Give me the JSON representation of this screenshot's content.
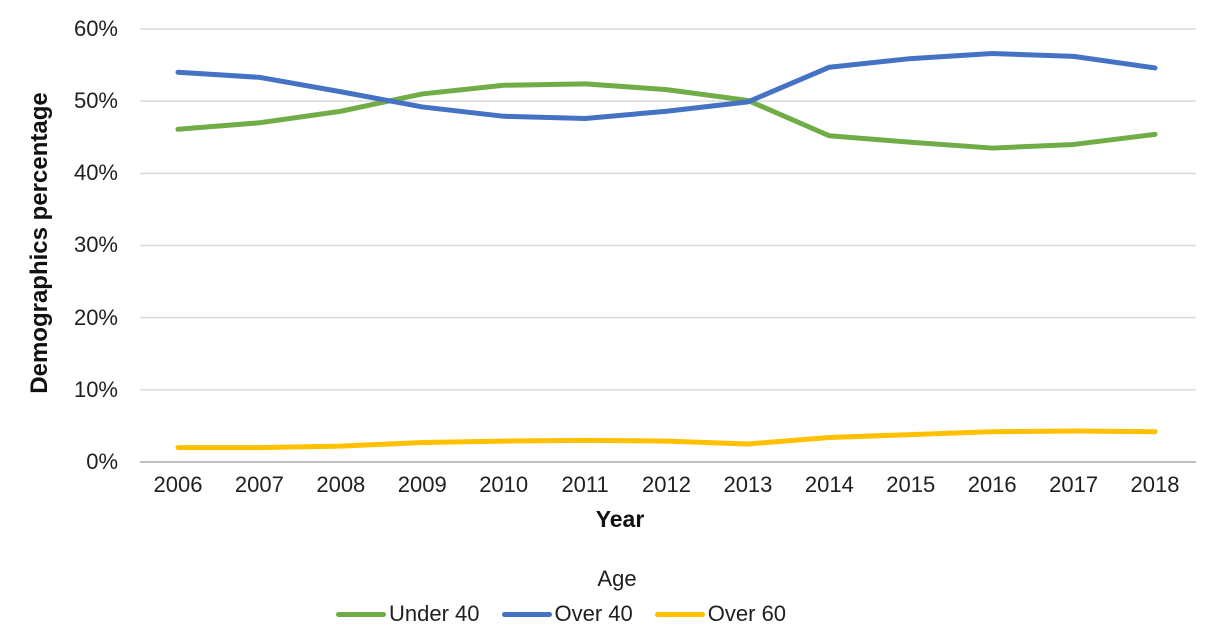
{
  "chart_data": {
    "type": "line",
    "x": [
      2006,
      2007,
      2008,
      2009,
      2010,
      2011,
      2012,
      2013,
      2014,
      2015,
      2016,
      2017,
      2018
    ],
    "series": [
      {
        "name": "Under 40",
        "color": "#70AD47",
        "values": [
          46.1,
          47.0,
          48.6,
          51.0,
          52.2,
          52.4,
          51.6,
          50.1,
          45.2,
          44.3,
          43.5,
          44.0,
          45.4
        ]
      },
      {
        "name": "Over 40",
        "color": "#4472C4",
        "values": [
          54.0,
          53.3,
          51.3,
          49.2,
          47.9,
          47.6,
          48.6,
          49.9,
          54.7,
          55.9,
          56.6,
          56.2,
          54.6
        ]
      },
      {
        "name": "Over 60",
        "color": "#FFC000",
        "values": [
          2.0,
          2.0,
          2.2,
          2.7,
          2.9,
          3.0,
          2.9,
          2.5,
          3.4,
          3.8,
          4.2,
          4.3,
          4.2
        ]
      }
    ],
    "title": "",
    "xlabel": "Year",
    "ylabel": "Demographics percentage",
    "legend_title": "Age",
    "legend_position": "bottom",
    "ylim": [
      0,
      60
    ],
    "yticks": [
      0,
      10,
      20,
      30,
      40,
      50,
      60
    ],
    "ytick_suffix": "%",
    "grid": "horizontal",
    "gridline_color": "#D9D9D9",
    "axisline_color": "#C0C0C0",
    "line_width": 5
  }
}
